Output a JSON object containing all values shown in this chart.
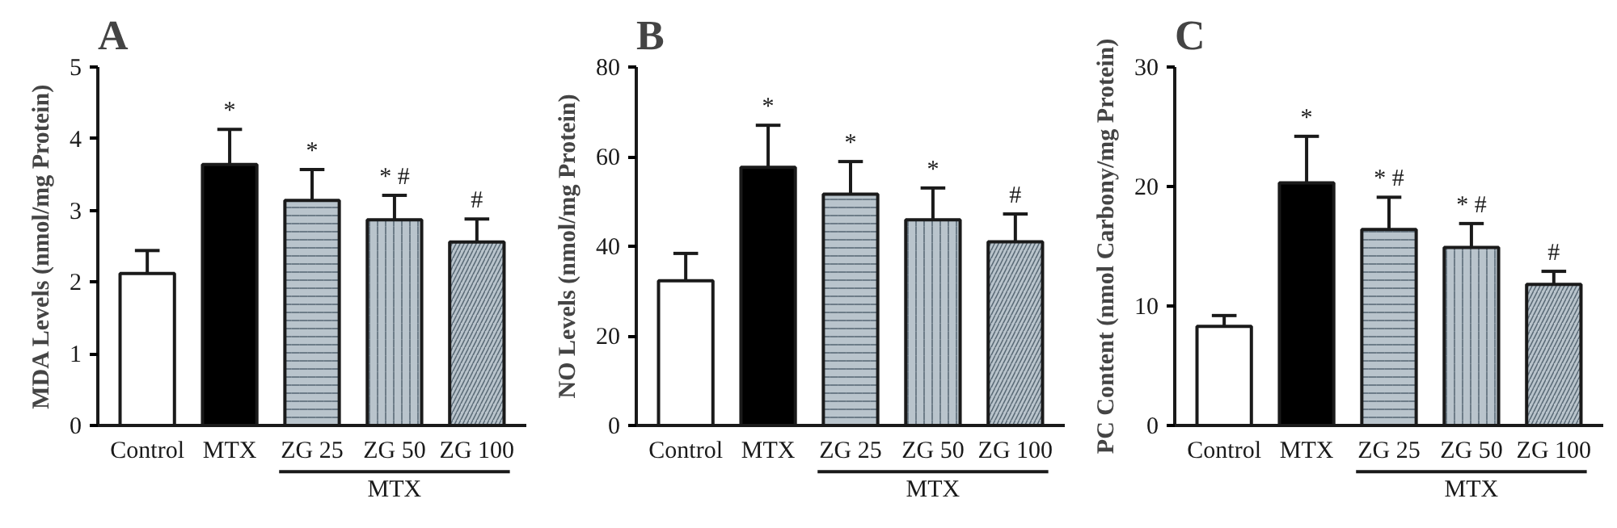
{
  "chart_data": [
    {
      "type": "bar",
      "title": "A",
      "ylabel": "MDA Levels (nmol/mg Protein)",
      "categories": [
        "Control",
        "MTX",
        "ZG 25",
        "ZG 50",
        "ZG 100"
      ],
      "values": [
        2.12,
        3.64,
        3.14,
        2.87,
        2.56
      ],
      "errors": [
        [
          2.12,
          2.44
        ],
        [
          3.64,
          4.13
        ],
        [
          3.14,
          3.57
        ],
        [
          2.87,
          3.21
        ],
        [
          2.56,
          2.88
        ]
      ],
      "colors": [
        "#ffffff",
        "#000000",
        "#b9c4cc",
        "#b9c4cc",
        "#b9c4cc"
      ],
      "ylim": [
        0,
        5
      ],
      "yticks": [
        0,
        1,
        2,
        3,
        4,
        5
      ],
      "annotations": [
        {
          "text": "*",
          "x": "MTX",
          "y": 4.13
        },
        {
          "text": "*",
          "x": "ZG 25",
          "y": 3.57
        },
        {
          "text": "* #",
          "x": "ZG 50",
          "y": 3.21
        },
        {
          "text": "#",
          "x": "ZG 100",
          "y": 2.88
        },
        "MTX"
      ]
    },
    {
      "type": "bar",
      "title": "B",
      "ylabel": "NO Levels (nmol/mg Protein)",
      "categories": [
        "Control",
        "MTX",
        "ZG 25",
        "ZG 50",
        "ZG 100"
      ],
      "values": [
        32.3,
        57.6,
        51.6,
        45.9,
        41.0
      ],
      "errors": [
        [
          32.3,
          38.4
        ],
        [
          57.6,
          67.0
        ],
        [
          51.6,
          58.9
        ],
        [
          45.9,
          53.0
        ],
        [
          41.0,
          47.2
        ]
      ],
      "colors": [
        "#ffffff",
        "#000000",
        "#b9c4cc",
        "#b9c4cc",
        "#b9c4cc"
      ],
      "ylim": [
        0,
        80
      ],
      "yticks": [
        0,
        20,
        40,
        60,
        80
      ],
      "annotations": [
        {
          "text": "*",
          "x": "MTX",
          "y": 67.0
        },
        {
          "text": "*",
          "x": "ZG 25",
          "y": 58.9
        },
        {
          "text": "*",
          "x": "ZG 50",
          "y": 53.0
        },
        {
          "text": "#",
          "x": "ZG 100",
          "y": 47.2
        },
        "MTX"
      ]
    },
    {
      "type": "bar",
      "title": "C",
      "ylabel": "PC Content (nmol Carbony/mg Protein)",
      "categories": [
        "Control",
        "MTX",
        "ZG 25",
        "ZG 50",
        "ZG 100"
      ],
      "values": [
        8.3,
        20.3,
        16.4,
        14.9,
        11.8
      ],
      "errors": [
        [
          8.3,
          9.2
        ],
        [
          20.3,
          24.2
        ],
        [
          16.4,
          19.1
        ],
        [
          14.9,
          16.9
        ],
        [
          11.8,
          12.9
        ]
      ],
      "colors": [
        "#ffffff",
        "#000000",
        "#b9c4cc",
        "#b9c4cc",
        "#b9c4cc"
      ],
      "ylim": [
        0,
        30
      ],
      "yticks": [
        0,
        10,
        20,
        30
      ],
      "annotations": [
        {
          "text": "*",
          "x": "MTX",
          "y": 24.2
        },
        {
          "text": "* #",
          "x": "ZG 25",
          "y": 19.1
        },
        {
          "text": "* #",
          "x": "ZG 50",
          "y": 16.9
        },
        {
          "text": "#",
          "x": "ZG 100",
          "y": 12.9
        },
        "MTX"
      ]
    }
  ]
}
